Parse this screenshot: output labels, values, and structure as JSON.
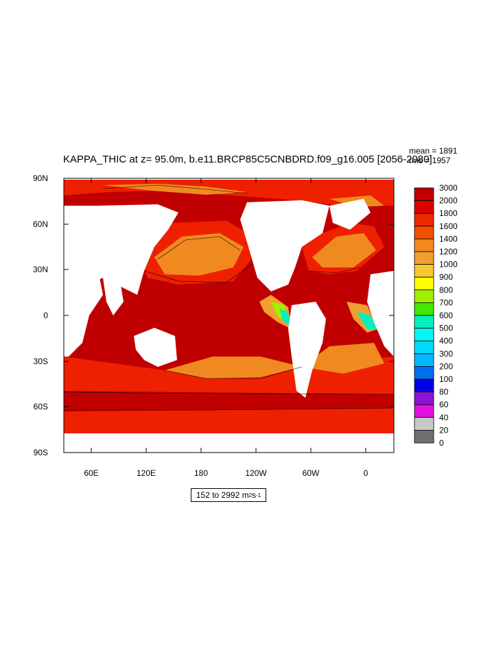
{
  "title": "KAPPA_THIC at z=  95.0m, b.e11.BRCP85C5CNBDRD.f09_g16.005 [2056-2080]",
  "stats": {
    "mean": "mean = 1891",
    "rms": "rms = 1957"
  },
  "range": {
    "text": "152 to 2992 m",
    "unit_sup1": "2",
    "mid": " s",
    "unit_sup2": "-1"
  },
  "y_ticks": [
    "90N",
    "60N",
    "30N",
    "0",
    "30S",
    "60S",
    "90S"
  ],
  "x_ticks": [
    "60E",
    "120E",
    "180",
    "120W",
    "60W",
    "0"
  ],
  "colorbar": {
    "labels": [
      "3000",
      "2000",
      "1800",
      "1600",
      "1400",
      "1200",
      "1000",
      "900",
      "800",
      "700",
      "600",
      "500",
      "400",
      "300",
      "200",
      "100",
      "80",
      "60",
      "40",
      "20",
      "0"
    ],
    "colors": [
      "#c00000",
      "#dd0000",
      "#f02800",
      "#f05000",
      "#f08a20",
      "#f0a030",
      "#f8c830",
      "#ffff00",
      "#a0f000",
      "#40e800",
      "#00f0c0",
      "#00f8f0",
      "#00d8ff",
      "#00b8ff",
      "#0070f0",
      "#0000e8",
      "#9010d8",
      "#e010e0",
      "#c8c8c8",
      "#707070"
    ]
  },
  "chart_data": {
    "type": "heatmap",
    "title": "KAPPA_THIC at z=  95.0m, b.e11.BRCP85C5CNBDRD.f09_g16.005 [2056-2080]",
    "x_range": [
      "30E",
      "30E (next cycle)"
    ],
    "y_range": [
      "90S",
      "90N"
    ],
    "x_ticks": [
      "60E",
      "120E",
      "180",
      "120W",
      "60W",
      "0"
    ],
    "y_ticks": [
      "90N",
      "60N",
      "30N",
      "0",
      "30S",
      "60S",
      "90S"
    ],
    "levels": [
      0,
      20,
      40,
      60,
      80,
      100,
      200,
      300,
      400,
      500,
      600,
      700,
      800,
      900,
      1000,
      1200,
      1400,
      1600,
      1800,
      2000,
      3000
    ],
    "min": 152,
    "max": 2992,
    "mean": 1891,
    "rms": 1957,
    "units": "m2 s-1"
  }
}
